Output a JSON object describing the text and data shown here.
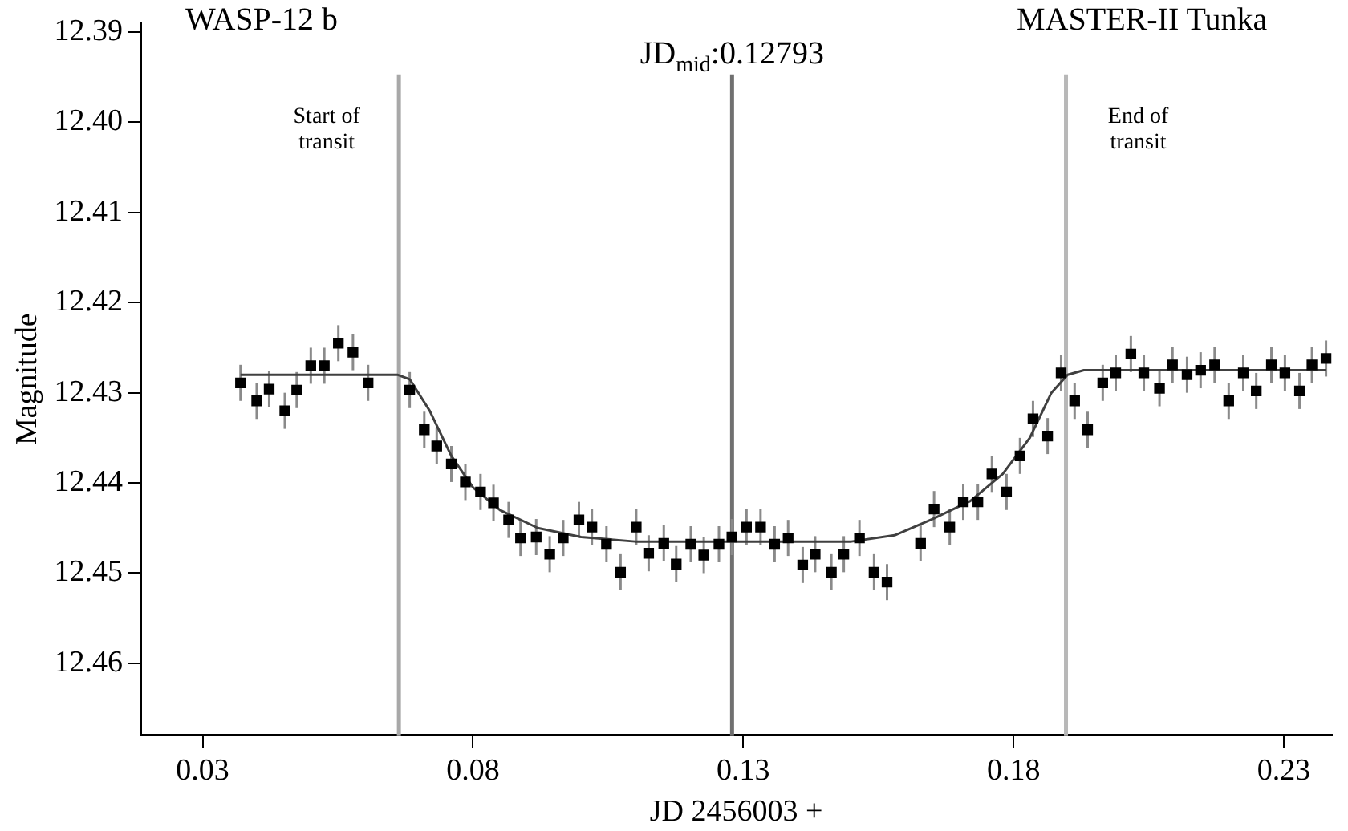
{
  "chart_data": {
    "type": "scatter",
    "xlabel": "JD 2456003 +",
    "ylabel": "Magnitude",
    "annotations": [
      "WASP-12 b",
      "MASTER-II Tunka"
    ],
    "xlim": [
      0.0185,
      0.2389
    ],
    "xticks": [
      0.03,
      0.08,
      0.13,
      0.18,
      0.23
    ],
    "ylim": [
      12.468,
      12.389
    ],
    "yticks": [
      12.39,
      {
        "value": 12.4,
        "label": "12.40"
      },
      12.41,
      12.42,
      12.43,
      12.44,
      12.45,
      12.46
    ],
    "grid": false,
    "legend": false,
    "marker": "square",
    "ref_lines": [
      {
        "axis": "x",
        "value": 0.0663,
        "label": "Start of\ntransit",
        "color": "#a8a8a8"
      },
      {
        "axis": "x",
        "value": 0.12793,
        "label": "JD$_{mid}$:0.12793",
        "color": "#707070"
      },
      {
        "axis": "x",
        "value": 0.1897,
        "label": "End of\ntransit",
        "color": "#b8b8b8"
      }
    ],
    "series": [
      {
        "type": "scatter",
        "color": "#000000",
        "x": [
          0.037,
          0.04,
          0.0423,
          0.0452,
          0.0474,
          0.05,
          0.0525,
          0.0551,
          0.0578,
          0.0606,
          0.0683,
          0.071,
          0.0733,
          0.076,
          0.0786,
          0.0814,
          0.0838,
          0.0866,
          0.0888,
          0.0917,
          0.0942,
          0.0967,
          0.0996,
          0.102,
          0.1047,
          0.1073,
          0.1102,
          0.1125,
          0.1153,
          0.1176,
          0.1203,
          0.1227,
          0.1255,
          0.1279,
          0.1306,
          0.1332,
          0.1358,
          0.1383,
          0.141,
          0.1433,
          0.1463,
          0.1486,
          0.1515,
          0.1542,
          0.1566,
          0.1628,
          0.1653,
          0.1682,
          0.1707,
          0.1734,
          0.176,
          0.1787,
          0.1812,
          0.1836,
          0.1863,
          0.1888,
          0.1913,
          0.1937,
          0.1965,
          0.1989,
          0.2017,
          0.2041,
          0.207,
          0.2094,
          0.2121,
          0.2146,
          0.2172,
          0.2198,
          0.2225,
          0.2249,
          0.2277,
          0.2302,
          0.2329,
          0.2352,
          0.2378
        ],
        "values": [
          12.4289,
          12.4309,
          12.4296,
          12.432,
          12.4297,
          12.427,
          12.427,
          12.4245,
          12.4255,
          12.4289,
          12.4297,
          12.4341,
          12.4359,
          12.4379,
          12.4399,
          12.441,
          12.4422,
          12.4441,
          12.4461,
          12.446,
          12.4479,
          12.4461,
          12.4441,
          12.4449,
          12.4468,
          12.4499,
          12.4449,
          12.4478,
          12.4467,
          12.449,
          12.4468,
          12.448,
          12.4468,
          12.446,
          12.4449,
          12.4449,
          12.4468,
          12.4461,
          12.4491,
          12.4479,
          12.4499,
          12.4479,
          12.4461,
          12.4499,
          12.451,
          12.4467,
          12.4429,
          12.4449,
          12.4421,
          12.4421,
          12.439,
          12.441,
          12.437,
          12.4329,
          12.4348,
          12.4278,
          12.4309,
          12.4341,
          12.4289,
          12.4278,
          12.4257,
          12.4278,
          12.4295,
          12.4269,
          12.428,
          12.4275,
          12.4269,
          12.4309,
          12.4278,
          12.4298,
          12.4269,
          12.4278,
          12.4298,
          12.4269,
          12.4262
        ],
        "errors": [
          0.002,
          0.002,
          0.002,
          0.002,
          0.002,
          0.002,
          0.002,
          0.002,
          0.002,
          0.002,
          0.002,
          0.002,
          0.002,
          0.002,
          0.002,
          0.002,
          0.002,
          0.002,
          0.002,
          0.002,
          0.002,
          0.002,
          0.002,
          0.002,
          0.002,
          0.002,
          0.002,
          0.002,
          0.002,
          0.002,
          0.002,
          0.002,
          0.002,
          0.002,
          0.002,
          0.002,
          0.002,
          0.002,
          0.002,
          0.002,
          0.002,
          0.002,
          0.002,
          0.002,
          0.002,
          0.002,
          0.002,
          0.002,
          0.002,
          0.002,
          0.002,
          0.002,
          0.002,
          0.002,
          0.002,
          0.002,
          0.002,
          0.002,
          0.002,
          0.002,
          0.002,
          0.002,
          0.002,
          0.002,
          0.002,
          0.002,
          0.002,
          0.002,
          0.002,
          0.002,
          0.002,
          0.002,
          0.002,
          0.002,
          0.002
        ]
      },
      {
        "type": "line",
        "color": "#404040",
        "marker": "none",
        "line_style": "solid",
        "x": [
          0.037,
          0.066,
          0.0683,
          0.072,
          0.076,
          0.08,
          0.085,
          0.092,
          0.1,
          0.11,
          0.15,
          0.158,
          0.165,
          0.172,
          0.178,
          0.183,
          0.187,
          0.19,
          0.193,
          0.2378
        ],
        "values": [
          12.428,
          12.428,
          12.4285,
          12.432,
          12.437,
          12.4405,
          12.443,
          12.445,
          12.446,
          12.4465,
          12.4465,
          12.4458,
          12.444,
          12.442,
          12.439,
          12.435,
          12.43,
          12.428,
          12.4275,
          12.4275
        ]
      }
    ]
  }
}
